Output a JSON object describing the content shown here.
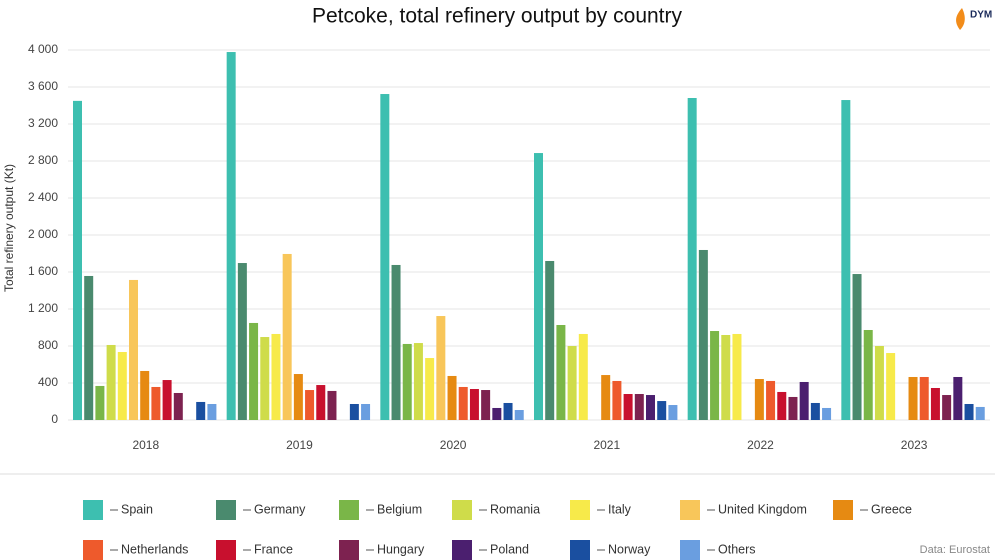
{
  "chart_data": {
    "type": "bar",
    "title": "Petcoke, total refinery output by country",
    "y_label": "Total refinery output (Kt)",
    "source": "Data: Eurostat",
    "logo": "DYM",
    "categories": [
      "2018",
      "2019",
      "2020",
      "2021",
      "2022",
      "2023"
    ],
    "series": [
      {
        "name": "Spain",
        "color": "#3dbfb0",
        "values": [
          3450,
          3978,
          3524,
          2886,
          3481,
          3459
        ]
      },
      {
        "name": "Germany",
        "color": "#4a8a6e",
        "values": [
          1557,
          1697,
          1676,
          1719,
          1838,
          1578
        ]
      },
      {
        "name": "Belgium",
        "color": "#7ab648",
        "values": [
          368,
          1049,
          822,
          1027,
          962,
          973
        ]
      },
      {
        "name": "Romania",
        "color": "#cfdc4a",
        "values": [
          811,
          897,
          832,
          800,
          919,
          800
        ]
      },
      {
        "name": "Italy",
        "color": "#f7ea4a",
        "values": [
          735,
          930,
          670,
          930,
          930,
          724
        ]
      },
      {
        "name": "United Kingdom",
        "color": "#f8c65a",
        "values": [
          1514,
          1795,
          1124,
          null,
          null,
          null
        ]
      },
      {
        "name": "Greece",
        "color": "#e68a12",
        "values": [
          530,
          497,
          476,
          486,
          443,
          465
        ]
      },
      {
        "name": "Netherlands",
        "color": "#ee5a2c",
        "values": [
          357,
          324,
          357,
          422,
          422,
          465
        ]
      },
      {
        "name": "France",
        "color": "#c8102e",
        "values": [
          432,
          378,
          335,
          281,
          303,
          346
        ]
      },
      {
        "name": "Hungary",
        "color": "#7d2250",
        "values": [
          292,
          314,
          324,
          281,
          249,
          270
        ]
      },
      {
        "name": "Poland",
        "color": "#4b1f6f",
        "values": [
          null,
          null,
          130,
          270,
          411,
          465
        ]
      },
      {
        "name": "Norway",
        "color": "#1a4fa0",
        "values": [
          195,
          173,
          184,
          205,
          184,
          173
        ]
      },
      {
        "name": "Others",
        "color": "#6a9ee0",
        "values": [
          173,
          173,
          108,
          162,
          130,
          141
        ]
      }
    ],
    "ylim": [
      0,
      4000
    ],
    "yticks": [
      0,
      400,
      800,
      {
        "value": 1200,
        "label": "1 200"
      },
      {
        "value": 1600,
        "label": "1 600"
      },
      {
        "value": 2000,
        "label": "2 000"
      },
      {
        "value": 2400,
        "label": "2 400"
      },
      {
        "value": 2800,
        "label": "2 800"
      },
      {
        "value": 3200,
        "label": "3 200"
      },
      {
        "value": 3600,
        "label": "3 600"
      },
      {
        "value": 4000,
        "label": "4 000"
      }
    ],
    "grid": true
  }
}
